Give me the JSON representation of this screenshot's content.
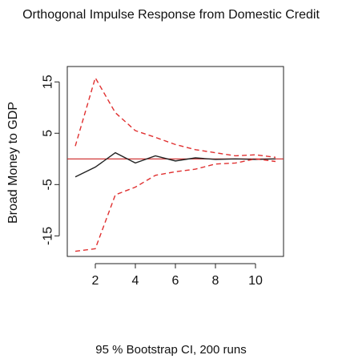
{
  "chart_data": {
    "type": "line",
    "title": "Orthogonal Impulse Response from Domestic Credit",
    "xlabel": "95 % Bootstrap CI,  200 runs",
    "ylabel": "Broad Money to GDP",
    "xlim": [
      0.6,
      11.4
    ],
    "ylim": [
      -19,
      18
    ],
    "x_ticks": [
      2,
      4,
      6,
      8,
      10
    ],
    "y_ticks": [
      -15,
      -5,
      5,
      15
    ],
    "x": [
      1,
      2,
      3,
      4,
      5,
      6,
      7,
      8,
      9,
      10,
      11
    ],
    "zero_line": 0,
    "grid": false,
    "series": [
      {
        "role": "response",
        "values": [
          -3.5,
          -1.6,
          1.2,
          -0.8,
          0.6,
          -0.4,
          0.2,
          -0.1,
          0.0,
          -0.1,
          0.0
        ],
        "color": "#222222",
        "style": "solid"
      },
      {
        "role": "upper-ci",
        "values": [
          2.5,
          15.8,
          9.0,
          5.5,
          4.2,
          2.8,
          1.8,
          1.2,
          0.6,
          0.8,
          0.3
        ],
        "color": "#e03030",
        "style": "dashed"
      },
      {
        "role": "lower-ci",
        "values": [
          -18.0,
          -17.5,
          -7.0,
          -5.5,
          -3.2,
          -2.5,
          -2.0,
          -1.0,
          -0.8,
          0.0,
          -0.5
        ],
        "color": "#e03030",
        "style": "dashed"
      }
    ],
    "zero_line_color": "#cc2222"
  }
}
